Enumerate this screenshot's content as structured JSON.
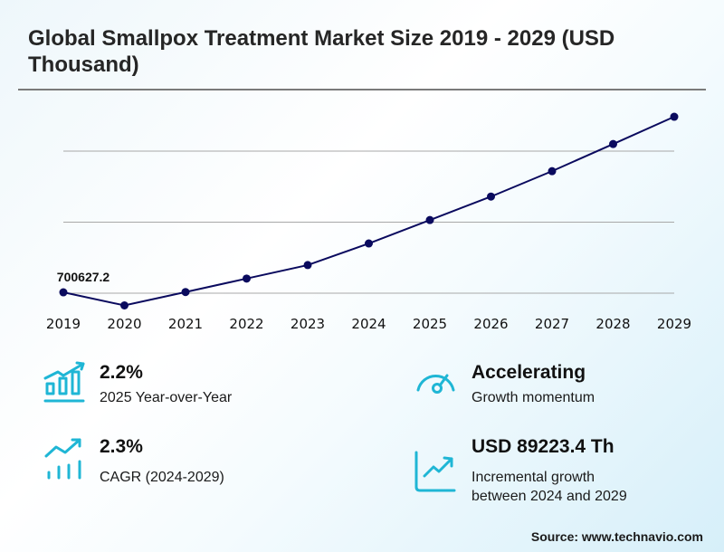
{
  "title": "Global Smallpox Treatment Market Size 2019 - 2029 (USD Thousand)",
  "chart_data": {
    "type": "line",
    "title": "Global Smallpox Treatment Market Size 2019 - 2029 (USD Thousand)",
    "xlabel": "",
    "ylabel": "",
    "categories": [
      "2019",
      "2020",
      "2021",
      "2022",
      "2023",
      "2024",
      "2025",
      "2026",
      "2027",
      "2028",
      "2029"
    ],
    "series": [
      {
        "name": "Market Size (USD Thousand)",
        "values": [
          700627.2,
          691400,
          700800,
          710300,
          719800,
          735000,
          751500,
          768000,
          785900,
          805000,
          824200
        ]
      }
    ],
    "data_labels": [
      {
        "index": 0,
        "text": "700627.2"
      }
    ],
    "ylim": [
      650000,
      825000
    ],
    "gridlines": [
      700000,
      750000,
      800000
    ],
    "grid": true,
    "y_tick_labels_visible": false,
    "legend": "none"
  },
  "stats": [
    {
      "icon": "bar-chart-growth-icon",
      "value": "2.2%",
      "desc": [
        "2025 Year-over-Year"
      ]
    },
    {
      "icon": "speedometer-icon",
      "value": "Accelerating",
      "desc": [
        "Growth momentum"
      ]
    },
    {
      "icon": "trend-up-bars-icon",
      "value": "2.3%",
      "desc": [
        "CAGR (2024-2029)"
      ]
    },
    {
      "icon": "line-chart-up-icon",
      "value": "USD 89223.4 Th",
      "desc": [
        "Incremental growth",
        "between 2024 and 2029"
      ]
    }
  ],
  "source": "Source: www.technavio.com",
  "colors": {
    "line": "#0a0a5e",
    "icon": "#1fb6d5",
    "grid": "#a8a8a8"
  }
}
